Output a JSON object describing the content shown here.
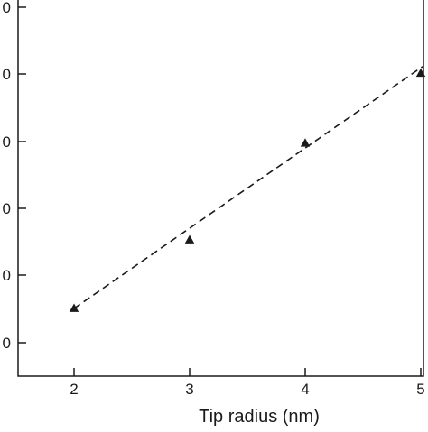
{
  "chart_data": {
    "type": "scatter",
    "xlabel": "Tip radius (nm)",
    "ylabel": "",
    "x_ticks": [
      "2",
      "3",
      "4",
      "5"
    ],
    "y_tick_labels": [
      "0",
      "0",
      "0",
      "0",
      "0",
      "0"
    ],
    "xlim": [
      1.5,
      5.05
    ],
    "ylim": [
      0.5,
      6.25
    ],
    "series": [
      {
        "marker": "triangle",
        "x": [
          2,
          3,
          4,
          5
        ],
        "y": [
          1.5,
          2.52,
          3.96,
          5.0
        ]
      }
    ],
    "fit_line": {
      "style": "dashed",
      "x": [
        2,
        5
      ],
      "y": [
        1.5,
        5.1
      ]
    },
    "grid": false,
    "legend": "none",
    "colors": {
      "marker": "#1a1a1a",
      "line": "#1a1a1a",
      "axis": "#1a1a1a"
    }
  }
}
